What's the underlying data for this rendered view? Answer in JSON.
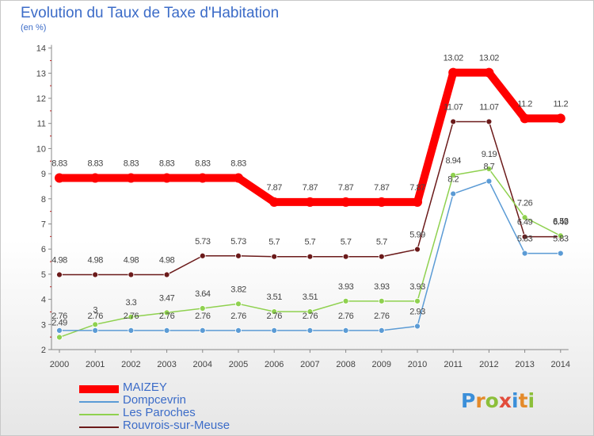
{
  "title": "Evolution du Taux de Taxe d'Habitation",
  "unit_label": "(en %)",
  "brand": {
    "letters": [
      "P",
      "r",
      "o",
      "x",
      "i",
      "t",
      "i"
    ],
    "colors": [
      "#3b8fd9",
      "#e48a2a",
      "#8cbf3a",
      "#e24c3c",
      "#3b8fd9",
      "#e48a2a",
      "#8cbf3a"
    ]
  },
  "chart_data": {
    "type": "line",
    "title": "Evolution du Taux de Taxe d'Habitation",
    "ylabel": "(en %)",
    "xlabel": "",
    "ylim": [
      2,
      14
    ],
    "yticks": [
      2,
      3,
      4,
      5,
      6,
      7,
      8,
      9,
      10,
      11,
      12,
      13,
      14
    ],
    "x": [
      "2000",
      "2001",
      "2002",
      "2003",
      "2004",
      "2005",
      "2006",
      "2007",
      "2008",
      "2009",
      "2010",
      "2011",
      "2012",
      "2013",
      "2014"
    ],
    "grid": false,
    "legend_position": "bottom-left",
    "series": [
      {
        "name": "MAIZEY",
        "color": "#ff0000",
        "values": [
          8.83,
          8.83,
          8.83,
          8.83,
          8.83,
          8.83,
          7.87,
          7.87,
          7.87,
          7.87,
          7.87,
          13.02,
          13.02,
          11.2,
          11.2
        ],
        "labels": [
          "8.83",
          "8.83",
          "8.83",
          "8.83",
          "8.83",
          "8.83",
          "7.87",
          "7.87",
          "7.87",
          "7.87",
          "7.87",
          "13.02",
          "13.02",
          "11.2",
          "11.2"
        ]
      },
      {
        "name": "Dompcevrin",
        "color": "#5b9bd5",
        "values": [
          2.76,
          2.76,
          2.76,
          2.76,
          2.76,
          2.76,
          2.76,
          2.76,
          2.76,
          2.76,
          2.93,
          8.2,
          8.7,
          5.83,
          5.83
        ],
        "labels": [
          "2.76",
          "2.76",
          "2.76",
          "2.76",
          "2.76",
          "2.76",
          "2.76",
          "2.76",
          "2.76",
          "2.76",
          "2.93",
          "8.2",
          "8.7",
          "5.83",
          "5.83"
        ]
      },
      {
        "name": "Les Paroches",
        "color": "#8fd14f",
        "values": [
          2.49,
          3,
          3.3,
          3.47,
          3.64,
          3.82,
          3.51,
          3.51,
          3.93,
          3.93,
          3.93,
          8.94,
          9.19,
          7.26,
          6.53
        ],
        "labels": [
          "2.49",
          "3",
          "3.3",
          "3.47",
          "3.64",
          "3.82",
          "3.51",
          "3.51",
          "3.93",
          "3.93",
          "3.93",
          "8.94",
          "9.19",
          "7.26",
          "6.53"
        ]
      },
      {
        "name": "Rouvrois-sur-Meuse",
        "color": "#6b1a1a",
        "values": [
          4.98,
          4.98,
          4.98,
          4.98,
          5.73,
          5.73,
          5.7,
          5.7,
          5.7,
          5.7,
          5.99,
          11.07,
          11.07,
          6.49,
          6.49
        ],
        "labels": [
          "4.98",
          "4.98",
          "4.98",
          "4.98",
          "5.73",
          "5.73",
          "5.7",
          "5.7",
          "5.7",
          "5.7",
          "5.99",
          "11.07",
          "11.07",
          "6.49",
          "6.49"
        ]
      }
    ]
  }
}
